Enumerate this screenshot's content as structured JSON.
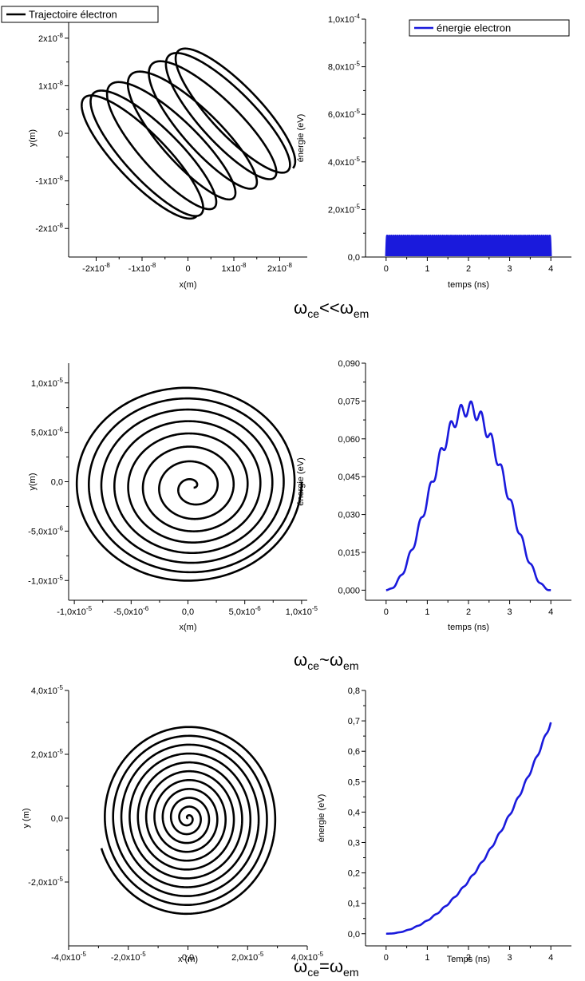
{
  "figure": {
    "regimes": [
      {
        "main": "ω",
        "sub1": "ce",
        "op": "<<",
        "main2": "ω",
        "sub2": "em"
      },
      {
        "main": "ω",
        "sub1": "ce",
        "op": "~",
        "main2": "ω",
        "sub2": "em"
      },
      {
        "main": "ω",
        "sub1": "ce",
        "op": "=",
        "main2": "ω",
        "sub2": "em"
      }
    ]
  },
  "chart_data": [
    {
      "type": "line",
      "panel": "trajectory-1",
      "xlabel": "x(m)",
      "ylabel": "y(m)",
      "legend": {
        "label": "Trajectoire électron",
        "placement": "top-left"
      },
      "xlim": [
        -2.6e-08,
        2.6e-08
      ],
      "ylim": [
        -2.6e-08,
        2.4e-08
      ],
      "xticks": [
        -2e-08,
        -1e-08,
        0,
        1e-08,
        2e-08
      ],
      "xtick_labels": [
        [
          "-2x10",
          "-8"
        ],
        [
          "-1x10",
          "-8"
        ],
        [
          "0",
          ""
        ],
        [
          "1x10",
          "-8"
        ],
        [
          "2x10",
          "-8"
        ]
      ],
      "yticks": [
        -2e-08,
        -1e-08,
        0,
        1e-08,
        2e-08
      ],
      "ytick_labels": [
        [
          "-2x10",
          "-8"
        ],
        [
          "-1x10",
          "-8"
        ],
        [
          "0",
          ""
        ],
        [
          "1x10",
          "-8"
        ],
        [
          "2x10",
          "-8"
        ]
      ],
      "series": [
        {
          "name": "Trajectoire électron",
          "color": "#000000",
          "model": {
            "kind": "drifting-ellipses",
            "major_half": 1.75e-08,
            "minor_half": 5e-09,
            "tilt_deg": -45,
            "turns": 7,
            "drift_amplitude": 1.1e-08
          }
        }
      ]
    },
    {
      "type": "line",
      "panel": "energy-1",
      "xlabel": "temps (ns)",
      "ylabel": "énergie (eV)",
      "legend": {
        "label": "énergie electron",
        "placement": "top-right"
      },
      "xlim": [
        -0.5,
        4.5
      ],
      "ylim": [
        0,
        0.0001
      ],
      "xticks": [
        0,
        1,
        2,
        3,
        4
      ],
      "xtick_labels": [
        "0",
        "1",
        "2",
        "3",
        "4"
      ],
      "yticks": [
        0,
        2e-05,
        4e-05,
        6e-05,
        8e-05,
        0.0001
      ],
      "ytick_labels": [
        [
          "0,0",
          ""
        ],
        [
          "2,0x10",
          "-5"
        ],
        [
          "4,0x10",
          "-5"
        ],
        [
          "6,0x10",
          "-5"
        ],
        [
          "8,0x10",
          "-5"
        ],
        [
          "1,0x10",
          "-4"
        ]
      ],
      "series": [
        {
          "name": "énergie electron",
          "color": "#1a1adc",
          "model": {
            "kind": "fast-oscillation",
            "max": 9e-06,
            "periods": 80,
            "t_end": 4
          }
        }
      ]
    },
    {
      "type": "line",
      "panel": "trajectory-2",
      "xlabel": "x(m)",
      "ylabel": "y(m)",
      "xlim": [
        -1.05e-05,
        1.05e-05
      ],
      "ylim": [
        -1.2e-05,
        1.2e-05
      ],
      "xticks": [
        -1e-05,
        -5e-06,
        0,
        5e-06,
        1e-05
      ],
      "xtick_labels": [
        [
          "-1,0x10",
          "-5"
        ],
        [
          "-5,0x10",
          "-6"
        ],
        [
          "0,0",
          ""
        ],
        [
          "5,0x10",
          "-6"
        ],
        [
          "1,0x10",
          "-5"
        ]
      ],
      "yticks": [
        -1e-05,
        -5e-06,
        0,
        5e-06,
        1e-05
      ],
      "ytick_labels": [
        [
          "-1,0x10",
          "-5"
        ],
        [
          "-5,0x10",
          "-6"
        ],
        [
          "0,0",
          ""
        ],
        [
          "5,0x10",
          "-6"
        ],
        [
          "1,0x10",
          "-5"
        ]
      ],
      "series": [
        {
          "name": "",
          "color": "#000000",
          "model": {
            "kind": "growing-spiral",
            "r_max": 1e-05,
            "turns": 8
          }
        }
      ]
    },
    {
      "type": "line",
      "panel": "energy-2",
      "xlabel": "temps (ns)",
      "ylabel": "énergie (eV)",
      "xlim": [
        -0.5,
        4.5
      ],
      "ylim": [
        -0.004,
        0.09
      ],
      "xticks": [
        0,
        1,
        2,
        3,
        4
      ],
      "xtick_labels": [
        "0",
        "1",
        "2",
        "3",
        "4"
      ],
      "yticks": [
        0,
        0.015,
        0.03,
        0.045,
        0.06,
        0.075,
        0.09
      ],
      "ytick_labels": [
        "0,000",
        "0,015",
        "0,030",
        "0,045",
        "0,060",
        "0,075",
        "0,090"
      ],
      "series": [
        {
          "name": "",
          "color": "#1a1adc",
          "model": {
            "kind": "bell-with-ripple",
            "peak": 0.072,
            "ripple": 0.003,
            "periods": 16,
            "t_end": 4
          },
          "x": [
            0,
            0.5,
            1.0,
            1.5,
            2.0,
            2.5,
            3.0,
            3.5,
            4.0
          ],
          "y": [
            0.0,
            0.01,
            0.035,
            0.06,
            0.072,
            0.06,
            0.035,
            0.01,
            0.0
          ]
        }
      ]
    },
    {
      "type": "line",
      "panel": "trajectory-3",
      "xlabel": "x (m)",
      "ylabel": "y (m)",
      "xlim": [
        -4e-05,
        4e-05
      ],
      "ylim": [
        -4e-05,
        4e-05
      ],
      "xticks": [
        -4e-05,
        -2e-05,
        0,
        2e-05,
        4e-05
      ],
      "xtick_labels": [
        [
          "-4,0x10",
          "-5"
        ],
        [
          "-2,0x10",
          "-5"
        ],
        [
          "0,0",
          ""
        ],
        [
          "2,0x10",
          "-5"
        ],
        [
          "4,0x10",
          "-5"
        ]
      ],
      "yticks": [
        -2e-05,
        0,
        2e-05,
        4e-05
      ],
      "ytick_labels": [
        [
          "-2,0x10",
          "-5"
        ],
        [
          "0,0",
          ""
        ],
        [
          "2,0x10",
          "-5"
        ],
        [
          "4,0x10",
          "-5"
        ]
      ],
      "series": [
        {
          "name": "",
          "color": "#000000",
          "model": {
            "kind": "archimedean-spiral",
            "r_max": 3.05e-05,
            "turns": 11
          }
        }
      ]
    },
    {
      "type": "line",
      "panel": "energy-3",
      "xlabel": "Temps (ns)",
      "ylabel": "énergie (eV)",
      "xlim": [
        -0.5,
        4.5
      ],
      "ylim": [
        -0.04,
        0.8
      ],
      "xticks": [
        0,
        1,
        2,
        3,
        4
      ],
      "xtick_labels": [
        "0",
        "1",
        "2",
        "3",
        "4"
      ],
      "yticks": [
        0,
        0.1,
        0.2,
        0.3,
        0.4,
        0.5,
        0.6,
        0.7,
        0.8
      ],
      "ytick_labels": [
        "0,0",
        "0,1",
        "0,2",
        "0,3",
        "0,4",
        "0,5",
        "0,6",
        "0,7",
        "0,8"
      ],
      "series": [
        {
          "name": "",
          "color": "#1a1adc",
          "model": {
            "kind": "quadratic-with-ripple",
            "end": 0.695,
            "ripple": 0.006,
            "periods": 18,
            "t_end": 4
          },
          "x": [
            0,
            1,
            2,
            3,
            4
          ],
          "y": [
            0.0,
            0.045,
            0.175,
            0.39,
            0.695
          ]
        }
      ]
    }
  ]
}
